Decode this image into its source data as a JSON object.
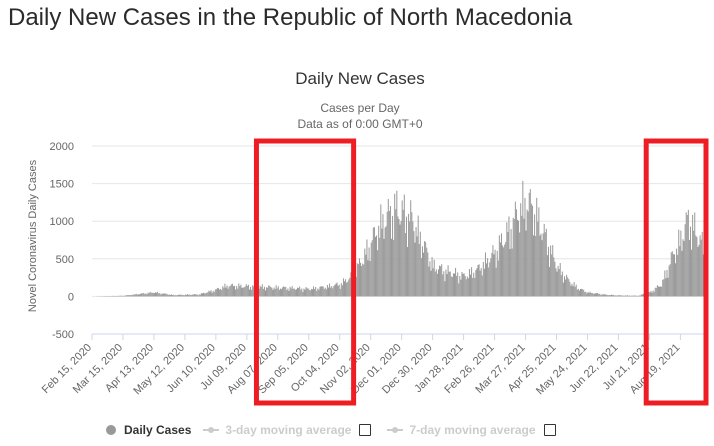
{
  "page": {
    "title": "Daily New Cases in the Republic of North Macedonia"
  },
  "legend": {
    "items": [
      {
        "label": "Daily Cases",
        "enabled": true
      },
      {
        "label": "3-day moving average",
        "enabled": false
      },
      {
        "label": "7-day moving average",
        "enabled": false
      }
    ]
  },
  "colors": {
    "bars": "#999999",
    "highlight_box": "#ee1c25",
    "gridline": "#e6e6e6",
    "axis_line": "#ccd6eb"
  },
  "chart_data": {
    "type": "bar",
    "title": "Daily New Cases",
    "subtitle_lines": [
      "Cases per Day",
      "Data as of 0:00 GMT+0"
    ],
    "xlabel": "",
    "ylabel": "Novel Coronavirus Daily Cases",
    "ylim": [
      -500,
      2000
    ],
    "yticks": [
      "2000",
      "1500",
      "1000",
      "500",
      "0",
      "-500"
    ],
    "ytick_values": [
      2000,
      1500,
      1000,
      500,
      0,
      -500
    ],
    "x_start_date": "2020-02-15",
    "x_end_date": "2021-09-12",
    "xtick_labels": [
      "Feb 15, 2020",
      "Mar 15, 2020",
      "Apr 13, 2020",
      "May 12, 2020",
      "Jun 10, 2020",
      "Jul 09, 2020",
      "Aug 07, 2020",
      "Sep 05, 2020",
      "Oct 04, 2020",
      "Nov 02, 2020",
      "Dec 01, 2020",
      "Dec 30, 2020",
      "Jan 28, 2021",
      "Feb 26, 2021",
      "Mar 27, 2021",
      "Apr 25, 2021",
      "May 24, 2021",
      "Jun 22, 2021",
      "Jul 21, 2021",
      "Aug 19, 2021"
    ],
    "series": [
      {
        "name": "Daily Cases",
        "x_unit": "date",
        "points": [
          [
            "2020-02-15",
            0
          ],
          [
            "2020-03-15",
            10
          ],
          [
            "2020-04-01",
            40
          ],
          [
            "2020-04-13",
            60
          ],
          [
            "2020-05-01",
            20
          ],
          [
            "2020-05-12",
            25
          ],
          [
            "2020-05-25",
            30
          ],
          [
            "2020-06-10",
            100
          ],
          [
            "2020-06-20",
            160
          ],
          [
            "2020-07-09",
            150
          ],
          [
            "2020-07-25",
            140
          ],
          [
            "2020-08-07",
            130
          ],
          [
            "2020-08-25",
            120
          ],
          [
            "2020-09-05",
            110
          ],
          [
            "2020-09-20",
            140
          ],
          [
            "2020-10-04",
            180
          ],
          [
            "2020-10-15",
            300
          ],
          [
            "2020-10-25",
            550
          ],
          [
            "2020-11-02",
            800
          ],
          [
            "2020-11-10",
            1050
          ],
          [
            "2020-11-18",
            1200
          ],
          [
            "2020-11-25",
            1300
          ],
          [
            "2020-12-01",
            1250
          ],
          [
            "2020-12-10",
            1150
          ],
          [
            "2020-12-20",
            800
          ],
          [
            "2020-12-30",
            450
          ],
          [
            "2021-01-10",
            380
          ],
          [
            "2021-01-28",
            300
          ],
          [
            "2021-02-10",
            400
          ],
          [
            "2021-02-26",
            650
          ],
          [
            "2021-03-10",
            950
          ],
          [
            "2021-03-20",
            1250
          ],
          [
            "2021-03-27",
            1400
          ],
          [
            "2021-04-03",
            1300
          ],
          [
            "2021-04-15",
            850
          ],
          [
            "2021-04-25",
            450
          ],
          [
            "2021-05-05",
            250
          ],
          [
            "2021-05-15",
            120
          ],
          [
            "2021-05-24",
            60
          ],
          [
            "2021-06-10",
            25
          ],
          [
            "2021-06-22",
            15
          ],
          [
            "2021-07-10",
            10
          ],
          [
            "2021-07-21",
            60
          ],
          [
            "2021-08-01",
            180
          ],
          [
            "2021-08-10",
            550
          ],
          [
            "2021-08-19",
            850
          ],
          [
            "2021-08-26",
            1150
          ],
          [
            "2021-09-01",
            1000
          ],
          [
            "2021-09-07",
            800
          ],
          [
            "2021-09-12",
            650
          ]
        ]
      }
    ],
    "highlight_ranges": [
      [
        "2020-07-18",
        "2020-10-17"
      ],
      [
        "2021-07-18",
        "2021-09-12"
      ]
    ],
    "legend_position": "bottom",
    "grid": true
  }
}
